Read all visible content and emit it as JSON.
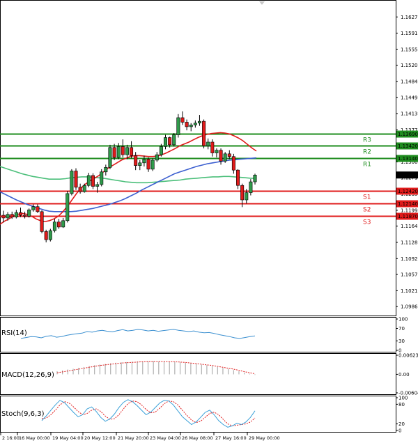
{
  "chart_data": {
    "type": "candlestick",
    "colors": {
      "bull": "#2e9a4a",
      "bear": "#e01b1b",
      "sma_fast": "#e01b1b",
      "sma_mid": "#3c5fd0",
      "sma_slow": "#4bbf7a",
      "resistance": "#1e8c1e",
      "support": "#e01b1b",
      "price_tag": "#000000"
    },
    "price_axis": {
      "ylim": [
        1.0966,
        1.1663
      ],
      "ticks": [
        "1.16270",
        "1.15910",
        "1.15550",
        "1.15200",
        "1.14840",
        "1.14490",
        "1.14130",
        "1.13770",
        "1.13420",
        "1.13060",
        "1.12710",
        "1.12350",
        "1.11990",
        "1.11640",
        "1.11280",
        "1.10920",
        "1.10570",
        "1.10210",
        "1.09860"
      ]
    },
    "current_price": {
      "label": "1.12771",
      "value": 1.12771
    },
    "levels": [
      {
        "name": "R3",
        "value": 1.1369,
        "label": "1.13690",
        "kind": "resistance"
      },
      {
        "name": "R2",
        "value": 1.1342,
        "label": "1.13420",
        "kind": "resistance"
      },
      {
        "name": "R1",
        "value": 1.1314,
        "label": "1.13140",
        "kind": "resistance"
      },
      {
        "name": "S1",
        "value": 1.1242,
        "label": "1.12420",
        "kind": "support"
      },
      {
        "name": "S2",
        "value": 1.1214,
        "label": "1.12140",
        "kind": "support"
      },
      {
        "name": "S3",
        "value": 1.1187,
        "label": "1.11870",
        "kind": "support"
      }
    ],
    "x_labels": [
      "2 16:00",
      "16 May 00:00",
      "19 May 04:00",
      "20 May 12:00",
      "21 May 20:00",
      "23 May 04:00",
      "26 May 08:00",
      "27 May 16:00",
      "29 May 00:00"
    ],
    "candles": [
      {
        "o": 1.1188,
        "h": 1.1198,
        "l": 1.1172,
        "c": 1.1182
      },
      {
        "o": 1.1182,
        "h": 1.1195,
        "l": 1.1176,
        "c": 1.119
      },
      {
        "o": 1.119,
        "h": 1.1196,
        "l": 1.118,
        "c": 1.1184
      },
      {
        "o": 1.1184,
        "h": 1.12,
        "l": 1.1181,
        "c": 1.1194
      },
      {
        "o": 1.1194,
        "h": 1.1205,
        "l": 1.1184,
        "c": 1.1188
      },
      {
        "o": 1.1188,
        "h": 1.1196,
        "l": 1.1181,
        "c": 1.1186
      },
      {
        "o": 1.1186,
        "h": 1.1203,
        "l": 1.1183,
        "c": 1.12
      },
      {
        "o": 1.12,
        "h": 1.1212,
        "l": 1.1196,
        "c": 1.1207
      },
      {
        "o": 1.1207,
        "h": 1.1212,
        "l": 1.1193,
        "c": 1.1196
      },
      {
        "o": 1.1196,
        "h": 1.1199,
        "l": 1.1148,
        "c": 1.1152
      },
      {
        "o": 1.1152,
        "h": 1.1156,
        "l": 1.1128,
        "c": 1.1134
      },
      {
        "o": 1.1134,
        "h": 1.1158,
        "l": 1.113,
        "c": 1.1154
      },
      {
        "o": 1.1154,
        "h": 1.118,
        "l": 1.115,
        "c": 1.1173
      },
      {
        "o": 1.1173,
        "h": 1.118,
        "l": 1.1158,
        "c": 1.1162
      },
      {
        "o": 1.1162,
        "h": 1.1182,
        "l": 1.116,
        "c": 1.1176
      },
      {
        "o": 1.1176,
        "h": 1.1242,
        "l": 1.1172,
        "c": 1.1236
      },
      {
        "o": 1.1236,
        "h": 1.129,
        "l": 1.1232,
        "c": 1.1286
      },
      {
        "o": 1.1286,
        "h": 1.1292,
        "l": 1.1244,
        "c": 1.125
      },
      {
        "o": 1.125,
        "h": 1.1258,
        "l": 1.1236,
        "c": 1.124
      },
      {
        "o": 1.124,
        "h": 1.1258,
        "l": 1.1238,
        "c": 1.1254
      },
      {
        "o": 1.1254,
        "h": 1.1282,
        "l": 1.125,
        "c": 1.1276
      },
      {
        "o": 1.1276,
        "h": 1.1281,
        "l": 1.1246,
        "c": 1.1252
      },
      {
        "o": 1.1252,
        "h": 1.1262,
        "l": 1.1238,
        "c": 1.1256
      },
      {
        "o": 1.1256,
        "h": 1.129,
        "l": 1.1252,
        "c": 1.1284
      },
      {
        "o": 1.1284,
        "h": 1.13,
        "l": 1.1276,
        "c": 1.1294
      },
      {
        "o": 1.1294,
        "h": 1.1344,
        "l": 1.129,
        "c": 1.1338
      },
      {
        "o": 1.1338,
        "h": 1.1346,
        "l": 1.131,
        "c": 1.1316
      },
      {
        "o": 1.1316,
        "h": 1.1348,
        "l": 1.1312,
        "c": 1.134
      },
      {
        "o": 1.134,
        "h": 1.1356,
        "l": 1.1316,
        "c": 1.1322
      },
      {
        "o": 1.1322,
        "h": 1.1344,
        "l": 1.1312,
        "c": 1.1338
      },
      {
        "o": 1.1338,
        "h": 1.1352,
        "l": 1.1314,
        "c": 1.132
      },
      {
        "o": 1.132,
        "h": 1.1328,
        "l": 1.1288,
        "c": 1.1298
      },
      {
        "o": 1.1298,
        "h": 1.131,
        "l": 1.1288,
        "c": 1.1304
      },
      {
        "o": 1.1304,
        "h": 1.132,
        "l": 1.1296,
        "c": 1.1312
      },
      {
        "o": 1.1312,
        "h": 1.1316,
        "l": 1.1284,
        "c": 1.129
      },
      {
        "o": 1.129,
        "h": 1.1314,
        "l": 1.1286,
        "c": 1.131
      },
      {
        "o": 1.131,
        "h": 1.1328,
        "l": 1.1306,
        "c": 1.1322
      },
      {
        "o": 1.1322,
        "h": 1.1346,
        "l": 1.1318,
        "c": 1.134
      },
      {
        "o": 1.134,
        "h": 1.1366,
        "l": 1.1334,
        "c": 1.136
      },
      {
        "o": 1.136,
        "h": 1.1362,
        "l": 1.1338,
        "c": 1.1344
      },
      {
        "o": 1.1344,
        "h": 1.137,
        "l": 1.134,
        "c": 1.1366
      },
      {
        "o": 1.1366,
        "h": 1.1412,
        "l": 1.136,
        "c": 1.1404
      },
      {
        "o": 1.1404,
        "h": 1.1418,
        "l": 1.1388,
        "c": 1.1394
      },
      {
        "o": 1.1394,
        "h": 1.14,
        "l": 1.1376,
        "c": 1.1384
      },
      {
        "o": 1.1384,
        "h": 1.1392,
        "l": 1.1374,
        "c": 1.1388
      },
      {
        "o": 1.1388,
        "h": 1.1398,
        "l": 1.1382,
        "c": 1.1392
      },
      {
        "o": 1.1392,
        "h": 1.141,
        "l": 1.1386,
        "c": 1.1396
      },
      {
        "o": 1.1396,
        "h": 1.14,
        "l": 1.1336,
        "c": 1.1342
      },
      {
        "o": 1.1342,
        "h": 1.1358,
        "l": 1.1334,
        "c": 1.135
      },
      {
        "o": 1.135,
        "h": 1.1356,
        "l": 1.1318,
        "c": 1.1326
      },
      {
        "o": 1.1326,
        "h": 1.1336,
        "l": 1.1316,
        "c": 1.1332
      },
      {
        "o": 1.1332,
        "h": 1.1336,
        "l": 1.13,
        "c": 1.1308
      },
      {
        "o": 1.1308,
        "h": 1.1328,
        "l": 1.1304,
        "c": 1.1324
      },
      {
        "o": 1.1324,
        "h": 1.1332,
        "l": 1.1312,
        "c": 1.1318
      },
      {
        "o": 1.1318,
        "h": 1.1324,
        "l": 1.128,
        "c": 1.1288
      },
      {
        "o": 1.1288,
        "h": 1.129,
        "l": 1.1246,
        "c": 1.1254
      },
      {
        "o": 1.1254,
        "h": 1.1258,
        "l": 1.1206,
        "c": 1.1222
      },
      {
        "o": 1.1222,
        "h": 1.1246,
        "l": 1.1214,
        "c": 1.1238
      },
      {
        "o": 1.1238,
        "h": 1.1268,
        "l": 1.1232,
        "c": 1.1262
      },
      {
        "o": 1.1262,
        "h": 1.128,
        "l": 1.1256,
        "c": 1.1277
      }
    ],
    "sma_fast": [
      1.1168,
      1.1175,
      1.118,
      1.1186,
      1.119,
      1.1192,
      1.119,
      1.1186,
      1.118,
      1.1176,
      1.1174,
      1.1176,
      1.118,
      1.1186,
      1.1196,
      1.1208,
      1.1222,
      1.1236,
      1.1248,
      1.1257,
      1.1264,
      1.127,
      1.1276,
      1.1284,
      1.1292,
      1.1298,
      1.1304,
      1.131,
      1.1314,
      1.1318,
      1.132,
      1.132,
      1.1319,
      1.1318,
      1.1318,
      1.1319,
      1.1322,
      1.1326,
      1.1331,
      1.1336,
      1.1342,
      1.1346,
      1.135,
      1.1355,
      1.136,
      1.1364,
      1.1367,
      1.1369,
      1.137,
      1.1371,
      1.137,
      1.1368,
      1.1364,
      1.1359,
      1.1353,
      1.1345,
      1.1337,
      1.133
    ],
    "sma_mid": [
      1.124,
      1.1234,
      1.1228,
      1.1222,
      1.1217,
      1.1212,
      1.1208,
      1.1204,
      1.12,
      1.1197,
      1.1196,
      1.1196,
      1.1196,
      1.1196,
      1.1197,
      1.1199,
      1.1201,
      1.1203,
      1.1206,
      1.1209,
      1.1212,
      1.1216,
      1.122,
      1.1225,
      1.1231,
      1.1237,
      1.1244,
      1.125,
      1.1256,
      1.1262,
      1.1268,
      1.1274,
      1.128,
      1.1284,
      1.1288,
      1.1292,
      1.1296,
      1.1299,
      1.1302,
      1.1304,
      1.1306,
      1.1308,
      1.131,
      1.1311,
      1.1312,
      1.1313,
      1.1314,
      1.1315
    ],
    "sma_slow": [
      1.1296,
      1.1292,
      1.1288,
      1.1284,
      1.128,
      1.1277,
      1.1274,
      1.1272,
      1.127,
      1.1268,
      1.1268,
      1.1268,
      1.1269,
      1.1271,
      1.1272,
      1.1273,
      1.1273,
      1.1272,
      1.1271,
      1.127,
      1.1268,
      1.1266,
      1.1264,
      1.1262,
      1.1261,
      1.126,
      1.126,
      1.126,
      1.1261,
      1.1262,
      1.1263,
      1.1264,
      1.1265,
      1.1266,
      1.1268,
      1.1269,
      1.127,
      1.1271,
      1.1272,
      1.1273,
      1.1273,
      1.1274,
      1.1274,
      1.1273,
      1.1272,
      1.1271,
      1.127,
      1.127
    ],
    "rsi": {
      "title": "RSI(14)",
      "ylim": [
        0,
        100
      ],
      "ticks": [
        "100",
        "70",
        "30",
        "0"
      ],
      "values": [
        38,
        41,
        44,
        43,
        40,
        45,
        47,
        42,
        44,
        48,
        51,
        53,
        55,
        60,
        58,
        62,
        64,
        61,
        59,
        63,
        66,
        62,
        64,
        67,
        65,
        62,
        64,
        61,
        63,
        65,
        67,
        64,
        62,
        60,
        62,
        58,
        56,
        57,
        54,
        50,
        47,
        44,
        40,
        38,
        41,
        44,
        46
      ]
    },
    "macd": {
      "title": "MACD(12,26,9)",
      "ticks": [
        "0.006235",
        "0.00",
        "-0.00604"
      ],
      "ylim": [
        -0.00604,
        0.006235
      ],
      "histogram": [
        0.001,
        0.0013,
        0.0016,
        0.0018,
        0.0021,
        0.0024,
        0.0027,
        0.003,
        0.0032,
        0.0034,
        0.0036,
        0.0038,
        0.0039,
        0.004,
        0.0041,
        0.0042,
        0.0042,
        0.0043,
        0.0043,
        0.0042,
        0.0042,
        0.0041,
        0.004,
        0.0039,
        0.0038,
        0.0036,
        0.0034,
        0.0032,
        0.003,
        0.0027,
        0.0024,
        0.0021,
        0.0018,
        0.0014,
        0.001,
        0.0006,
        0.0002,
        -0.0002
      ],
      "signal": [
        0.0005,
        0.0008,
        0.0011,
        0.0014,
        0.0017,
        0.002,
        0.0023,
        0.0026,
        0.0029,
        0.0031,
        0.0033,
        0.0035,
        0.0037,
        0.0038,
        0.0039,
        0.004,
        0.0041,
        0.0042,
        0.0042,
        0.0042,
        0.0042,
        0.0041,
        0.0041,
        0.004,
        0.0039,
        0.0037,
        0.0035,
        0.0033,
        0.0031,
        0.0029,
        0.0026,
        0.0023,
        0.002,
        0.0017,
        0.0013,
        0.0009,
        0.0005,
        0.0002
      ]
    },
    "stoch": {
      "title": "Stoch(9,6,3)",
      "ylim": [
        0,
        100
      ],
      "ticks": [
        "100",
        "80",
        "20",
        "0"
      ],
      "main": [
        30,
        45,
        62,
        78,
        92,
        85,
        70,
        55,
        42,
        48,
        66,
        72,
        58,
        40,
        28,
        35,
        50,
        70,
        86,
        94,
        88,
        76,
        62,
        48,
        56,
        70,
        84,
        92,
        90,
        78,
        60,
        42,
        30,
        18,
        26,
        40,
        55,
        62,
        48,
        30,
        18,
        10,
        14,
        22,
        18,
        26,
        40,
        60
      ],
      "signal": [
        36,
        38,
        48,
        62,
        78,
        88,
        84,
        72,
        58,
        48,
        52,
        62,
        66,
        58,
        44,
        34,
        36,
        48,
        66,
        82,
        90,
        88,
        78,
        64,
        54,
        56,
        68,
        82,
        90,
        88,
        78,
        62,
        46,
        32,
        24,
        28,
        40,
        52,
        56,
        48,
        34,
        20,
        14,
        16,
        18,
        20,
        26,
        38
      ]
    }
  }
}
